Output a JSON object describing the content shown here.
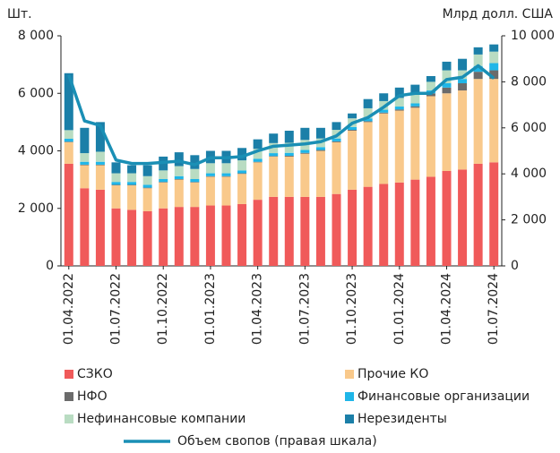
{
  "chart_data": {
    "type": "stacked_bar_line",
    "y_label": "Шт.",
    "y2_label": "Млрд долл. США",
    "categories": [
      "01.04.2022",
      null,
      null,
      "01.07.2022",
      null,
      null,
      "01.10.2022",
      null,
      null,
      "01.01.2023",
      null,
      null,
      "01.04.2023",
      null,
      null,
      "01.07.2023",
      null,
      null,
      "01.10.2023",
      null,
      null,
      "01.01.2024",
      null,
      null,
      "01.04.2024",
      null,
      null,
      "01.07.2024"
    ],
    "series": [
      {
        "name": "СЗКО",
        "color": "#f05a5a",
        "values": [
          3550,
          2700,
          2650,
          2000,
          1950,
          1900,
          2000,
          2050,
          2050,
          2100,
          2100,
          2150,
          2300,
          2400,
          2400,
          2400,
          2400,
          2500,
          2650,
          2750,
          2850,
          2900,
          3000,
          3100,
          3300,
          3350,
          3550,
          3600
        ]
      },
      {
        "name": "Прочие КО",
        "color": "#f9c98b",
        "values": [
          750,
          800,
          850,
          800,
          850,
          800,
          900,
          950,
          850,
          1000,
          1000,
          1050,
          1300,
          1400,
          1400,
          1500,
          1600,
          1800,
          2050,
          2250,
          2450,
          2500,
          2500,
          2800,
          2700,
          2750,
          2950,
          2900
        ]
      },
      {
        "name": "НФО",
        "color": "#6b6b6b",
        "values": [
          20,
          20,
          20,
          20,
          20,
          20,
          20,
          20,
          20,
          20,
          20,
          20,
          20,
          20,
          30,
          30,
          30,
          30,
          30,
          30,
          30,
          40,
          50,
          100,
          200,
          250,
          250,
          300
        ]
      },
      {
        "name": "Финансовые организации",
        "color": "#1fb6e8",
        "values": [
          100,
          100,
          100,
          100,
          100,
          100,
          100,
          100,
          100,
          100,
          100,
          100,
          100,
          100,
          100,
          100,
          100,
          100,
          100,
          100,
          100,
          100,
          100,
          100,
          150,
          150,
          200,
          250
        ]
      },
      {
        "name": "Нефинансовые компании",
        "color": "#b9dcc2",
        "values": [
          300,
          300,
          350,
          300,
          300,
          300,
          300,
          350,
          350,
          350,
          350,
          350,
          350,
          350,
          350,
          350,
          300,
          300,
          300,
          350,
          300,
          300,
          300,
          300,
          450,
          300,
          400,
          400
        ]
      },
      {
        "name": "Нерезиденты",
        "color": "#1b7fa8",
        "values": [
          1980,
          880,
          1030,
          380,
          280,
          380,
          480,
          480,
          480,
          430,
          430,
          430,
          330,
          330,
          420,
          420,
          370,
          270,
          170,
          320,
          270,
          360,
          350,
          200,
          300,
          400,
          250,
          250
        ]
      },
      {
        "name": "Объем свопов (правая шкала)",
        "color": "#1a8fb5",
        "axis": "y2",
        "values": [
          8300,
          6300,
          6100,
          4600,
          4450,
          4450,
          4500,
          4550,
          4400,
          4700,
          4700,
          4750,
          5000,
          5200,
          5250,
          5300,
          5400,
          5650,
          6200,
          6450,
          6900,
          7400,
          7500,
          7500,
          8100,
          8200,
          8700,
          8150
        ]
      }
    ],
    "ylim": [
      0,
      8000
    ],
    "yticks": [
      0,
      {
        "value": 2000,
        "label": "2 000"
      },
      {
        "value": 4000,
        "label": "4 000"
      },
      {
        "value": 6000,
        "label": "6 000"
      },
      {
        "value": 8000,
        "label": "8 000"
      }
    ],
    "y2lim": [
      0,
      10000
    ],
    "y2ticks": [
      0,
      {
        "value": 2000,
        "label": "2 000"
      },
      {
        "value": 4000,
        "label": "4 000"
      },
      {
        "value": 6000,
        "label": "6 000"
      },
      {
        "value": 8000,
        "label": "8 000"
      },
      {
        "value": 10000,
        "label": "10 000"
      }
    ],
    "legend": "bottom",
    "grid": false
  }
}
